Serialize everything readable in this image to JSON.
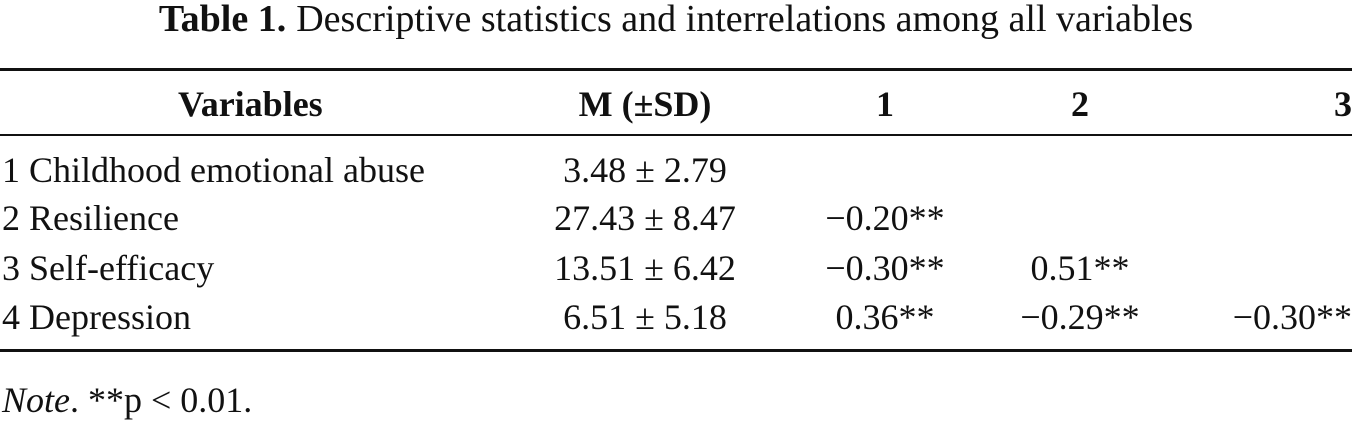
{
  "caption": {
    "label": "Table 1.",
    "text": "Descriptive statistics and interrelations among all variables"
  },
  "headers": {
    "variables": "Variables",
    "mean_sd": "M (±SD)",
    "col1": "1",
    "col2": "2",
    "col3": "3"
  },
  "rows": [
    {
      "variable": "1 Childhood emotional abuse",
      "mean_sd": "3.48 ± 2.79",
      "c1": "",
      "c2": "",
      "c3": ""
    },
    {
      "variable": "2 Resilience",
      "mean_sd": "27.43 ± 8.47",
      "c1": "−0.20**",
      "c2": "",
      "c3": ""
    },
    {
      "variable": "3 Self-efficacy",
      "mean_sd": "13.51 ± 6.42",
      "c1": "−0.30**",
      "c2": "0.51**",
      "c3": ""
    },
    {
      "variable": "4 Depression",
      "mean_sd": "6.51 ± 5.18",
      "c1": "0.36**",
      "c2": "−0.29**",
      "c3": "−0.30**"
    }
  ],
  "note": {
    "label": "Note",
    "text": ". **p < 0.01."
  }
}
